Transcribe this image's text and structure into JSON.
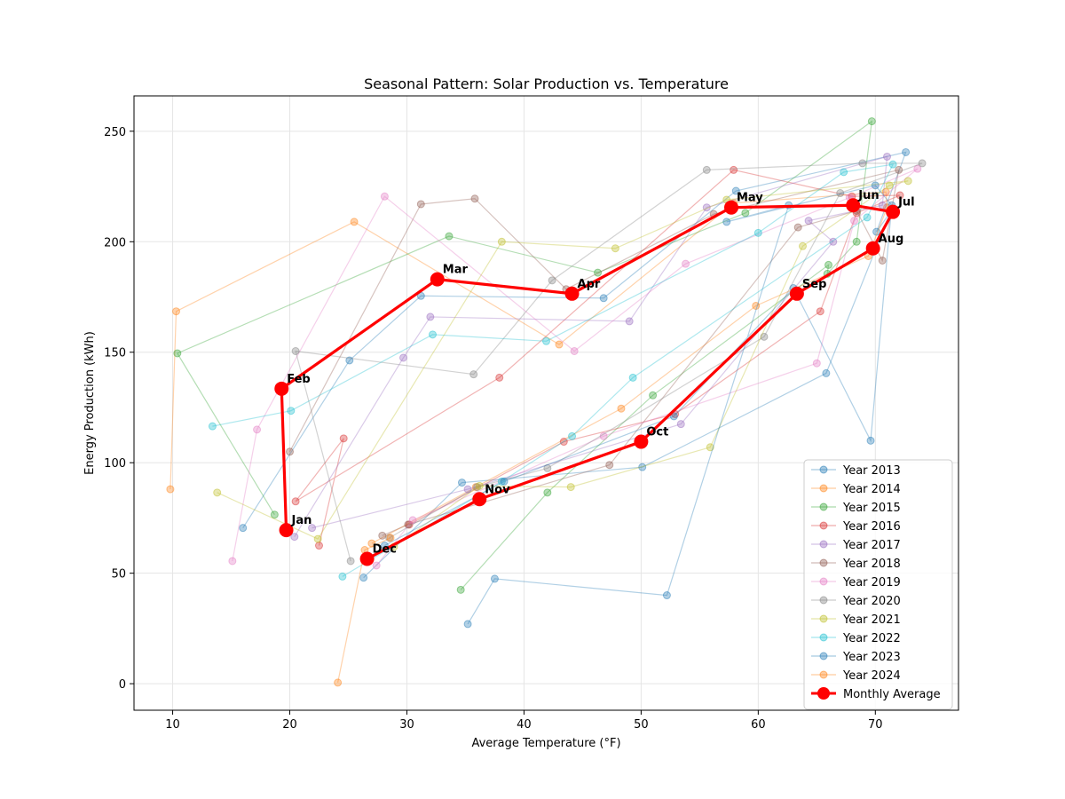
{
  "chart_data": {
    "type": "line",
    "title": "Seasonal Pattern: Solar Production vs. Temperature",
    "xlabel": "Average Temperature (°F)",
    "ylabel": "Energy Production (kWh)",
    "xlim": [
      6.7,
      77.1
    ],
    "ylim": [
      -12.0,
      266.0
    ],
    "x_ticks": [
      10,
      20,
      30,
      40,
      50,
      60,
      70
    ],
    "y_ticks": [
      0,
      50,
      100,
      150,
      200,
      250
    ],
    "grid": true,
    "legend_position": "lower right",
    "series": [
      {
        "name": "Year 2013",
        "color": "#1f77b4",
        "points": [
          [
            16.0,
            70.5
          ],
          [
            25.1,
            146.3
          ],
          [
            31.2,
            175.5
          ],
          [
            46.8,
            174.5
          ],
          [
            58.1,
            223.0
          ],
          [
            72.6,
            240.5
          ],
          [
            70.1,
            204.5
          ],
          [
            71.3,
            213.5
          ],
          [
            65.8,
            140.5
          ],
          [
            50.1,
            98.0
          ],
          [
            34.7,
            91.0
          ],
          [
            26.3,
            48.0
          ]
        ]
      },
      {
        "name": "Year 2014",
        "color": "#ff7f0e",
        "points": [
          [
            9.8,
            88.0
          ],
          [
            10.3,
            168.5
          ],
          [
            25.5,
            209.0
          ],
          [
            43.0,
            153.5
          ],
          [
            57.9,
            217.5
          ],
          [
            70.9,
            222.5
          ],
          [
            71.0,
            215.5
          ],
          [
            69.4,
            193.5
          ],
          [
            59.8,
            171.0
          ],
          [
            48.3,
            124.5
          ],
          [
            35.9,
            89.0
          ],
          [
            27.0,
            63.5
          ]
        ]
      },
      {
        "name": "Year 2015",
        "color": "#2ca02c",
        "points": [
          [
            18.7,
            76.5
          ],
          [
            10.4,
            149.5
          ],
          [
            33.6,
            202.5
          ],
          [
            46.3,
            186.0
          ],
          [
            58.9,
            213.0
          ],
          [
            69.7,
            254.5
          ],
          [
            68.4,
            200.0
          ],
          [
            65.9,
            185.5
          ],
          [
            66.0,
            189.5
          ],
          [
            51.0,
            130.5
          ],
          [
            42.0,
            86.5
          ],
          [
            34.6,
            42.5
          ]
        ]
      },
      {
        "name": "Year 2016",
        "color": "#d62728",
        "points": [
          [
            22.5,
            62.5
          ],
          [
            24.6,
            111.0
          ],
          [
            20.5,
            82.5
          ],
          [
            37.9,
            138.5
          ],
          [
            57.9,
            232.5
          ],
          [
            68.0,
            220.5
          ],
          [
            72.1,
            221.0
          ],
          [
            68.4,
            213.0
          ],
          [
            65.3,
            168.5
          ],
          [
            52.9,
            122.0
          ],
          [
            43.4,
            109.5
          ],
          [
            30.2,
            72.0
          ]
        ]
      },
      {
        "name": "Year 2017",
        "color": "#9467bd",
        "points": [
          [
            20.4,
            66.5
          ],
          [
            29.7,
            147.5
          ],
          [
            32.0,
            166.0
          ],
          [
            49.0,
            164.0
          ],
          [
            55.6,
            215.5
          ],
          [
            71.0,
            238.5
          ],
          [
            70.6,
            216.5
          ],
          [
            64.3,
            209.5
          ],
          [
            66.4,
            200.0
          ],
          [
            53.4,
            117.5
          ],
          [
            35.2,
            88.0
          ],
          [
            21.9,
            70.5
          ]
        ]
      },
      {
        "name": "Year 2018",
        "color": "#8c564b",
        "points": [
          [
            20.0,
            105.0
          ],
          [
            31.2,
            217.0
          ],
          [
            35.8,
            219.5
          ],
          [
            43.6,
            178.5
          ],
          [
            56.2,
            212.5
          ],
          [
            72.0,
            232.5
          ],
          [
            70.6,
            191.5
          ],
          [
            68.4,
            214.0
          ],
          [
            63.4,
            206.5
          ],
          [
            47.3,
            99.0
          ],
          [
            30.1,
            72.0
          ],
          [
            27.9,
            67.0
          ]
        ]
      },
      {
        "name": "Year 2019",
        "color": "#e377c2",
        "points": [
          [
            15.1,
            55.5
          ],
          [
            17.2,
            115.0
          ],
          [
            28.1,
            220.5
          ],
          [
            44.3,
            150.5
          ],
          [
            53.8,
            190.0
          ],
          [
            67.8,
            220.0
          ],
          [
            73.6,
            233.0
          ],
          [
            68.2,
            209.5
          ],
          [
            65.0,
            145.0
          ],
          [
            46.8,
            112.0
          ],
          [
            30.5,
            74.0
          ],
          [
            27.4,
            53.5
          ]
        ]
      },
      {
        "name": "Year 2020",
        "color": "#7f7f7f",
        "points": [
          [
            25.2,
            55.5
          ],
          [
            20.5,
            150.5
          ],
          [
            35.7,
            140.0
          ],
          [
            42.4,
            182.5
          ],
          [
            55.6,
            232.5
          ],
          [
            68.9,
            235.5
          ],
          [
            74.0,
            235.5
          ],
          [
            67.0,
            222.0
          ],
          [
            60.5,
            157.0
          ],
          [
            42.0,
            97.5
          ],
          [
            36.0,
            89.0
          ],
          [
            28.5,
            66.0
          ]
        ]
      },
      {
        "name": "Year 2021",
        "color": "#bcbd22",
        "points": [
          [
            13.8,
            86.5
          ],
          [
            22.4,
            65.5
          ],
          [
            38.1,
            200.0
          ],
          [
            47.8,
            197.0
          ],
          [
            57.3,
            219.0
          ],
          [
            72.8,
            227.5
          ],
          [
            71.2,
            225.5
          ],
          [
            63.8,
            198.0
          ],
          [
            55.9,
            107.0
          ],
          [
            44.0,
            89.0
          ],
          [
            36.2,
            89.5
          ],
          [
            28.9,
            62.0
          ]
        ]
      },
      {
        "name": "Year 2022",
        "color": "#17becf",
        "points": [
          [
            13.4,
            116.5
          ],
          [
            20.1,
            123.5
          ],
          [
            32.2,
            158.0
          ],
          [
            41.9,
            155.0
          ],
          [
            60.0,
            204.0
          ],
          [
            67.3,
            231.5
          ],
          [
            71.5,
            235.0
          ],
          [
            69.3,
            211.0
          ],
          [
            49.3,
            138.5
          ],
          [
            44.1,
            112.0
          ],
          [
            38.1,
            91.5
          ],
          [
            24.5,
            48.5
          ]
        ]
      },
      {
        "name": "Year 2023",
        "color": "#1f77b4",
        "points": [
          [
            35.2,
            27.0
          ],
          [
            37.5,
            47.5
          ],
          [
            52.2,
            40.0
          ],
          [
            62.6,
            216.5
          ],
          [
            57.3,
            209.0
          ],
          [
            70.0,
            225.5
          ],
          [
            71.4,
            216.5
          ],
          [
            69.6,
            110.0
          ],
          [
            63.0,
            179.0
          ],
          [
            52.8,
            121.0
          ],
          [
            38.3,
            91.5
          ],
          [
            28.1,
            62.5
          ]
        ]
      },
      {
        "name": "Year 2024",
        "color": "#ff7f0e",
        "points": [
          [
            24.1,
            0.5
          ],
          [
            26.4,
            60.5
          ],
          [
            28.6,
            66.0
          ]
        ]
      }
    ],
    "average": {
      "name": "Monthly Average",
      "color": "#ff0000",
      "months": [
        "Jan",
        "Feb",
        "Mar",
        "Apr",
        "May",
        "Jun",
        "Jul",
        "Aug",
        "Sep",
        "Oct",
        "Nov",
        "Dec"
      ],
      "x": [
        19.7,
        19.3,
        32.6,
        44.1,
        57.7,
        68.1,
        71.5,
        69.8,
        63.3,
        50.0,
        36.2,
        26.6
      ],
      "y": [
        69.5,
        133.5,
        183.0,
        176.5,
        215.5,
        216.5,
        213.5,
        197.0,
        176.5,
        109.5,
        83.5,
        56.5
      ]
    }
  }
}
